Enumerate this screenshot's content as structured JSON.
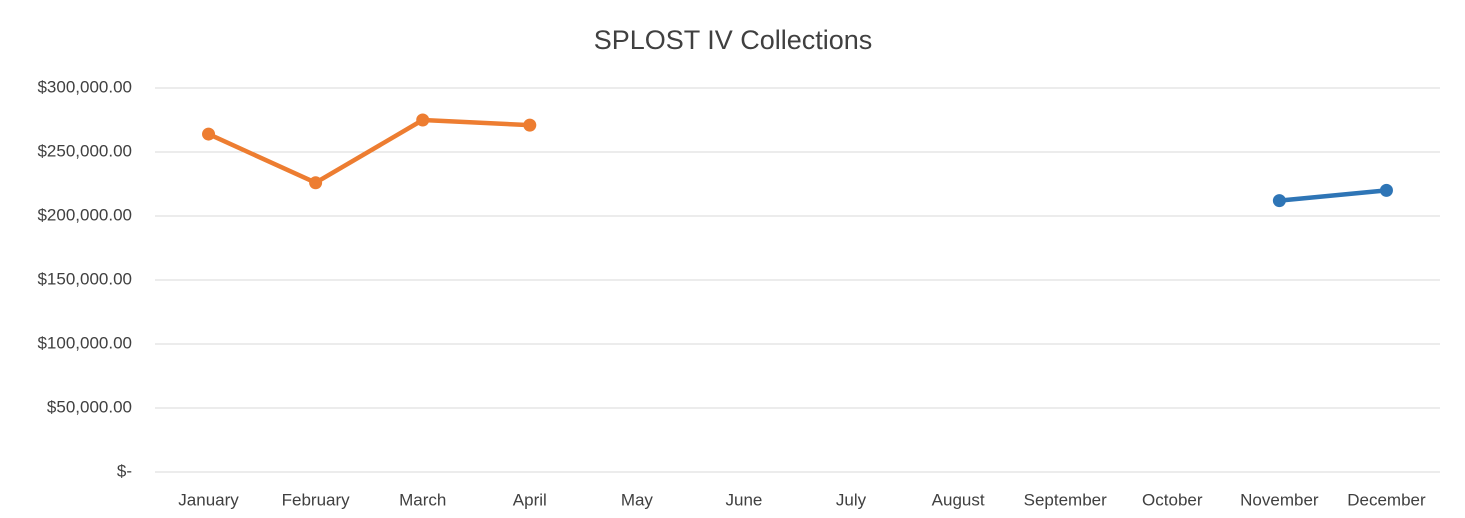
{
  "chart_data": {
    "type": "line",
    "title": "SPLOST IV Collections",
    "categories": [
      "January",
      "February",
      "March",
      "April",
      "May",
      "June",
      "July",
      "August",
      "September",
      "October",
      "November",
      "December"
    ],
    "series": [
      {
        "color": "#ed7d31",
        "values": [
          264000,
          226000,
          275000,
          271000,
          null,
          null,
          null,
          null,
          null,
          null,
          null,
          null
        ]
      },
      {
        "color": "#2e75b6",
        "values": [
          null,
          null,
          null,
          null,
          null,
          null,
          null,
          null,
          null,
          null,
          212000,
          220000
        ]
      }
    ],
    "ylim": [
      0,
      300000
    ],
    "yticks": [
      {
        "value": 0,
        "label": "$-"
      },
      {
        "value": 50000,
        "label": "$50,000.00"
      },
      {
        "value": 100000,
        "label": "$100,000.00"
      },
      {
        "value": 150000,
        "label": "$150,000.00"
      },
      {
        "value": 200000,
        "label": "$200,000.00"
      },
      {
        "value": 250000,
        "label": "$250,000.00"
      },
      {
        "value": 300000,
        "label": "$300,000.00"
      }
    ],
    "grid": true
  }
}
